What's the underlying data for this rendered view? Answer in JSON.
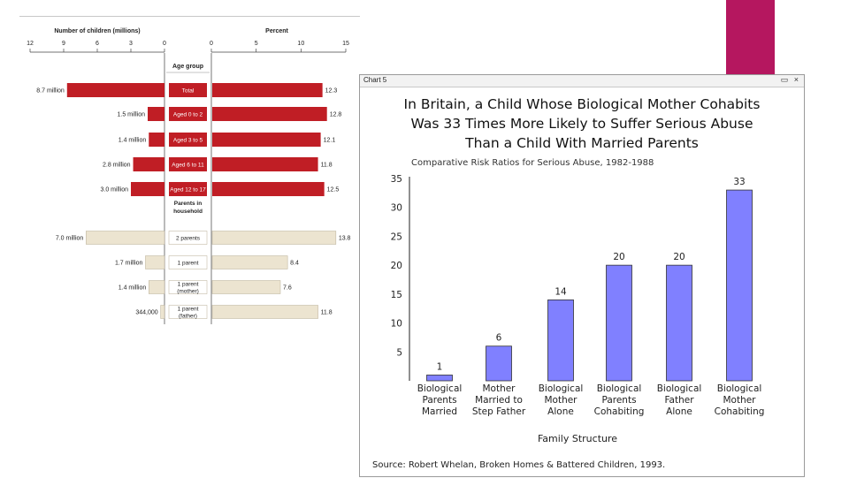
{
  "decor": {
    "accent_color": "#b5175f",
    "top_rule_color": "#c8c8c8"
  },
  "chart_data": [
    {
      "type": "bar",
      "orientation": "diverging-horizontal",
      "x_left_label": "Number of children (millions)",
      "x_right_label": "Percent",
      "left_ticks": [
        "12",
        "9",
        "6",
        "3",
        "0"
      ],
      "right_ticks": [
        "0",
        "5",
        "10",
        "15"
      ],
      "left_range": [
        12,
        0
      ],
      "right_range": [
        0,
        15
      ],
      "center_header": "Age group",
      "groups": [
        {
          "header": [
            "",
            ""
          ],
          "color": "#c01e25",
          "rows": [
            {
              "category": [
                "Total"
              ],
              "count": 8.7,
              "count_label": "8.7 million",
              "percent": 12.3,
              "percent_label": "12.3"
            },
            {
              "category": [
                "Aged 0 to 2"
              ],
              "count": 1.5,
              "count_label": "1.5 million",
              "percent": 12.8,
              "percent_label": "12.8"
            },
            {
              "category": [
                "Aged 3 to 5"
              ],
              "count": 1.4,
              "count_label": "1.4 million",
              "percent": 12.1,
              "percent_label": "12.1"
            },
            {
              "category": [
                "Aged 6 to 11"
              ],
              "count": 2.8,
              "count_label": "2.8 million",
              "percent": 11.8,
              "percent_label": "11.8"
            },
            {
              "category": [
                "Aged 12 to 17"
              ],
              "count": 3.0,
              "count_label": "3.0 million",
              "percent": 12.5,
              "percent_label": "12.5"
            }
          ]
        },
        {
          "header": [
            "Parents in",
            "household"
          ],
          "color": "#ece4d0",
          "rows": [
            {
              "category": [
                "2 parents"
              ],
              "count": 7.0,
              "count_label": "7.0 million",
              "percent": 13.8,
              "percent_label": "13.8"
            },
            {
              "category": [
                "1 parent"
              ],
              "count": 1.7,
              "count_label": "1.7 million",
              "percent": 8.4,
              "percent_label": "8.4"
            },
            {
              "category": [
                "1 parent",
                "(mother)"
              ],
              "count": 1.4,
              "count_label": "1.4 million",
              "percent": 7.6,
              "percent_label": "7.6"
            },
            {
              "category": [
                "1 parent",
                "(father)"
              ],
              "count": 0.344,
              "count_label": "344,000",
              "percent": 11.8,
              "percent_label": "11.8"
            }
          ]
        }
      ]
    },
    {
      "type": "bar",
      "window_label": "Chart 5",
      "window_buttons": "▭ ×",
      "title": "In Britain, a Child Whose Biological Mother Cohabits Was 33 Times More Likely to Suffer Serious Abuse Than a Child With Married Parents",
      "subtitle": "Comparative Risk Ratios for Serious Abuse, 1982-1988",
      "xlabel": "Family Structure",
      "ylabel": "",
      "ylim": [
        0,
        35
      ],
      "yticks": [
        5,
        10,
        15,
        20,
        25,
        30,
        35
      ],
      "grid": false,
      "bar_color": "#8080ff",
      "categories": [
        [
          "Biological",
          "Parents",
          "Married"
        ],
        [
          "Mother",
          "Married to",
          "Step Father"
        ],
        [
          "Biological",
          "Mother",
          "Alone"
        ],
        [
          "Biological",
          "Parents",
          "Cohabiting"
        ],
        [
          "Biological",
          "Father",
          "Alone"
        ],
        [
          "Biological",
          "Mother",
          "Cohabiting"
        ]
      ],
      "values": [
        1,
        6,
        14,
        20,
        20,
        33
      ],
      "source": "Source: Robert Whelan, Broken Homes & Battered Children, 1993."
    }
  ]
}
